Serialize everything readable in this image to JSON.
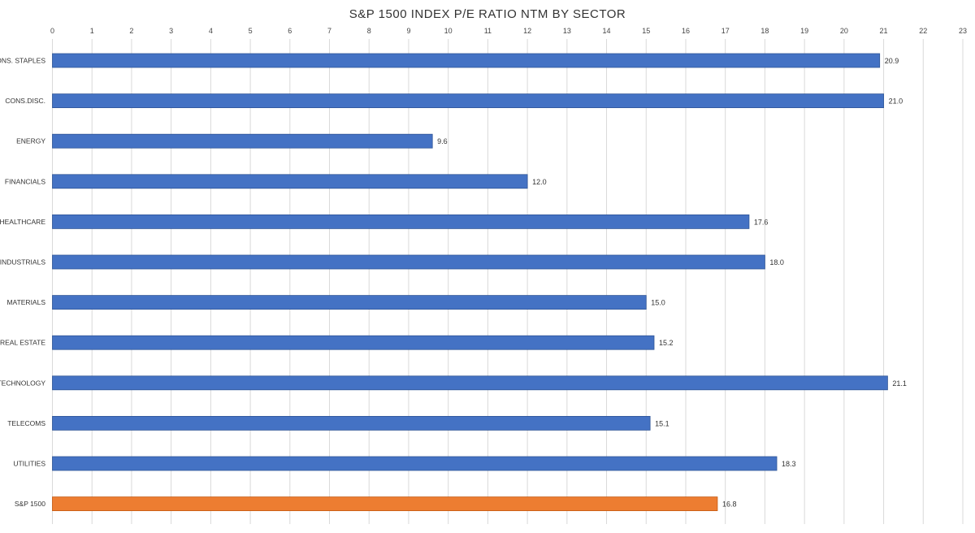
{
  "chart_data": {
    "type": "bar",
    "orientation": "horizontal",
    "title": "S&P 1500 INDEX P/E RATIO NTM BY SECTOR",
    "xlabel": "",
    "ylabel": "",
    "xlim": [
      0,
      23
    ],
    "x_ticks": [
      0,
      1,
      2,
      3,
      4,
      5,
      6,
      7,
      8,
      9,
      10,
      11,
      12,
      13,
      14,
      15,
      16,
      17,
      18,
      19,
      20,
      21,
      22,
      23
    ],
    "x_axis_position": "top",
    "grid": "vertical",
    "legend": "none",
    "categories": [
      "CONS. STAPLES",
      "CONS.DISC.",
      "ENERGY",
      "FINANCIALS",
      "HEALTHCARE",
      "INDUSTRIALS",
      "MATERIALS",
      "REAL ESTATE",
      "TECHNOLOGY",
      "TELECOMS",
      "UTILITIES",
      "S&P 1500"
    ],
    "values": [
      20.9,
      21.0,
      9.6,
      12.0,
      17.6,
      18.0,
      15.0,
      15.2,
      21.1,
      15.1,
      18.3,
      16.8
    ],
    "data_labels": [
      "20.9",
      "21.0",
      "9.6",
      "12.0",
      "17.6",
      "18.0",
      "15.0",
      "15.2",
      "21.1",
      "15.1",
      "18.3",
      "16.8"
    ],
    "colors": {
      "sector": "#4472c4",
      "sector_border": "#2f5597",
      "highlight": "#ed7d31",
      "highlight_border": "#c55a11",
      "grid": "#d9d9d9"
    },
    "highlight_category": "S&P 1500"
  }
}
